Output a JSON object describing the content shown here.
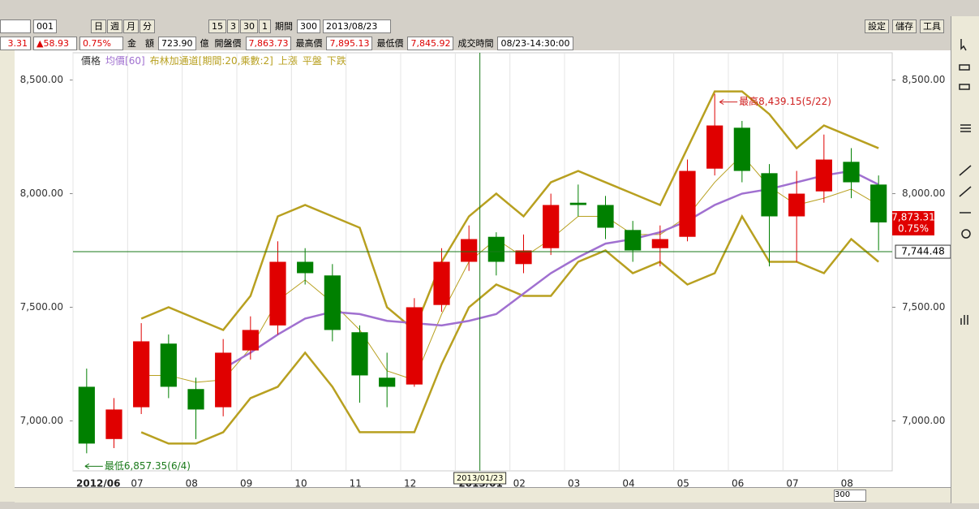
{
  "toolbar": {
    "code": "001",
    "periods": [
      "日",
      "週",
      "月",
      "分"
    ],
    "minutes": [
      "15",
      "3",
      "30",
      "1"
    ],
    "range_label": "期間",
    "range": "300",
    "date": "2013/08/23",
    "actions": [
      "設定",
      "儲存",
      "工具"
    ]
  },
  "quote": {
    "last": "3.31",
    "change": "▲58.93",
    "percent": "0.75%",
    "amount_label": "金　額",
    "amount": "723.90",
    "amount_unit": "億",
    "open_label": "開盤價",
    "open": "7,863.73",
    "high_label": "最高價",
    "high": "7,895.13",
    "low_label": "最低價",
    "low": "7,845.92",
    "time_label": "成交時間",
    "time": "08/23-14:30:00"
  },
  "chart_data": {
    "type": "candlestick",
    "legend": [
      "價格",
      "上漲",
      "平盤",
      "下跌"
    ],
    "categories": [
      "2012/06",
      null,
      "07",
      null,
      "08",
      null,
      "09",
      null,
      "10",
      null,
      "11",
      null,
      "12",
      null,
      "2013/01",
      null,
      "02",
      null,
      "03",
      null,
      "04",
      null,
      "05",
      null,
      "06",
      null,
      "07",
      null,
      "08",
      null
    ],
    "open": [
      7150,
      6920,
      7060,
      7340,
      7140,
      7060,
      7310,
      7420,
      7700,
      7640,
      7390,
      7190,
      7160,
      7510,
      7700,
      7810,
      7690,
      7760,
      7960,
      7950,
      7840,
      7760,
      7810,
      8110,
      8290,
      8090,
      7900,
      8010,
      8140,
      8040
    ],
    "high": [
      7230,
      7100,
      7430,
      7380,
      7190,
      7360,
      7460,
      7790,
      7760,
      7690,
      7420,
      7300,
      7540,
      7760,
      7860,
      7830,
      7820,
      8000,
      8040,
      7990,
      7880,
      7860,
      8150,
      8439.15,
      8320,
      8130,
      8100,
      8260,
      8200,
      8080
    ],
    "low": [
      6857.35,
      6880,
      7030,
      7100,
      6920,
      7020,
      7270,
      7380,
      7600,
      7350,
      7080,
      7060,
      7150,
      7480,
      7660,
      7640,
      7650,
      7730,
      7900,
      7800,
      7700,
      7680,
      7790,
      8080,
      8050,
      7680,
      7700,
      7960,
      7980,
      7750
    ],
    "close": [
      6900,
      7050,
      7350,
      7150,
      7050,
      7300,
      7400,
      7700,
      7650,
      7400,
      7200,
      7150,
      7500,
      7700,
      7800,
      7700,
      7750,
      7950,
      7950,
      7850,
      7750,
      7800,
      8100,
      8300,
      8100,
      7900,
      8000,
      8150,
      8050,
      7873.31
    ],
    "up_color": "#e00000",
    "down_color": "#008000",
    "series": [
      {
        "name": "均價[60]",
        "color": "#a070d0",
        "values": [
          null,
          null,
          null,
          null,
          null,
          7230,
          7300,
          7380,
          7450,
          7480,
          7470,
          7440,
          7430,
          7420,
          7440,
          7470,
          7560,
          7650,
          7720,
          7780,
          7800,
          7830,
          7880,
          7950,
          8000,
          8020,
          8050,
          8080,
          8100,
          8040
        ]
      },
      {
        "name": "布林加通道[期間:20,乘數:2]",
        "color": "#b8a020",
        "upper": [
          null,
          null,
          7450,
          7500,
          7450,
          7400,
          7550,
          7900,
          7950,
          7900,
          7850,
          7500,
          7400,
          7700,
          7900,
          8000,
          7900,
          8050,
          8100,
          8050,
          8000,
          7950,
          8200,
          8450,
          8450,
          8350,
          8200,
          8300,
          8250,
          8200
        ],
        "values": [
          null,
          null,
          7200,
          7200,
          7170,
          7180,
          7320,
          7530,
          7620,
          7520,
          7400,
          7220,
          7180,
          7470,
          7700,
          7800,
          7720,
          7800,
          7900,
          7900,
          7820,
          7820,
          7900,
          8050,
          8170,
          8030,
          7950,
          7980,
          8020,
          7950
        ],
        "lower": [
          null,
          null,
          6950,
          6900,
          6900,
          6950,
          7100,
          7150,
          7300,
          7150,
          6950,
          6950,
          6950,
          7250,
          7500,
          7600,
          7550,
          7550,
          7700,
          7750,
          7650,
          7700,
          7600,
          7650,
          7900,
          7700,
          7700,
          7650,
          7800,
          7700
        ]
      }
    ],
    "ylim": [
      6780,
      8620
    ],
    "yticks": [
      {
        "value": 7000,
        "label": "7,000.00"
      },
      {
        "value": 7500,
        "label": "7,500.00"
      },
      {
        "value": 8000,
        "label": "8,000.00"
      },
      {
        "value": 8500,
        "label": "8,500.00"
      }
    ],
    "annotations": {
      "high": "最高8,439.15(5/22)",
      "low": "最低6,857.35(6/4)"
    },
    "last_price": {
      "value": 7873.31,
      "label": "7,873.31",
      "percent": "0.75%"
    },
    "crosshair": {
      "value": 7744.48,
      "label": "7,744.48",
      "date": "2013/01/23"
    }
  }
}
